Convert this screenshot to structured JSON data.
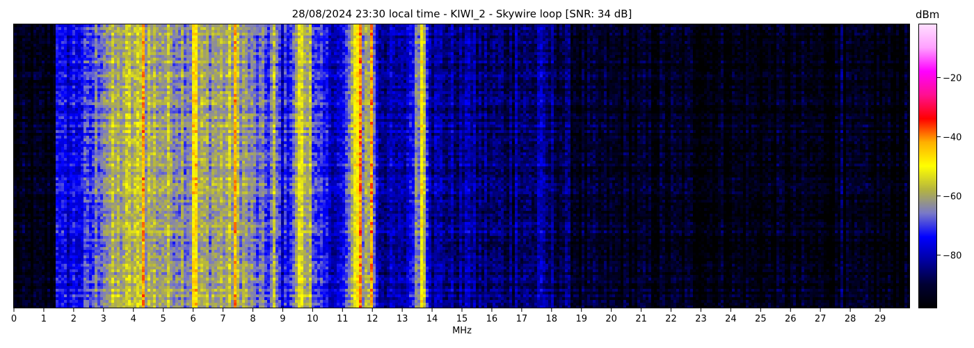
{
  "chart_data": {
    "type": "heatmap",
    "title": "28/08/2024 23:30 local time - KIWI_2 - Skywire loop [SNR: 34 dB]",
    "xlabel": "MHz",
    "ylabel": "",
    "xlim": [
      0,
      30
    ],
    "x_ticks": [
      0,
      1,
      2,
      3,
      4,
      5,
      6,
      7,
      8,
      9,
      10,
      11,
      12,
      13,
      14,
      15,
      16,
      17,
      18,
      19,
      20,
      21,
      22,
      23,
      24,
      25,
      26,
      27,
      28,
      29
    ],
    "colorbar": {
      "label": "dBm",
      "range": [
        -98,
        -2
      ],
      "ticks": [
        -20,
        -40,
        -60,
        -80
      ],
      "colormap": [
        "#000000",
        "#000033",
        "#0000a0",
        "#0000ff",
        "#7878c8",
        "#b4b440",
        "#ffff00",
        "#ffb000",
        "#ff0000",
        "#ff1090",
        "#ff00ff",
        "#ffa0ff",
        "#ffe0ff"
      ]
    },
    "spectrum_profile": {
      "description_points_mhz": [
        0,
        1.4,
        1.45,
        2.5,
        3,
        4,
        5,
        6,
        7,
        7.5,
        8,
        8.5,
        8.7,
        9,
        9.5,
        9.8,
        10,
        10.5,
        11,
        11.5,
        11.7,
        12,
        12.2,
        13,
        13.7,
        14,
        15,
        16,
        17,
        18,
        18.5,
        19,
        25,
        30
      ],
      "level_dbm": [
        -96,
        -95,
        -78,
        -72,
        -62,
        -58,
        -60,
        -62,
        -60,
        -58,
        -66,
        -70,
        -62,
        -76,
        -62,
        -58,
        -72,
        -76,
        -78,
        -50,
        -62,
        -58,
        -80,
        -84,
        -58,
        -82,
        -84,
        -86,
        -86,
        -86,
        -88,
        -93,
        -95,
        -96
      ]
    },
    "strong_lines_mhz": [
      {
        "f": 4.3,
        "level_dbm": -42
      },
      {
        "f": 6.05,
        "level_dbm": -46
      },
      {
        "f": 7.4,
        "level_dbm": -44
      },
      {
        "f": 9.6,
        "level_dbm": -54
      },
      {
        "f": 9.9,
        "level_dbm": -56
      },
      {
        "f": 11.6,
        "level_dbm": -40
      },
      {
        "f": 11.95,
        "level_dbm": -42
      },
      {
        "f": 13.68,
        "level_dbm": -50
      },
      {
        "f": 13.75,
        "level_dbm": -56
      },
      {
        "f": 8.7,
        "level_dbm": -58
      },
      {
        "f": 1.42,
        "level_dbm": -72
      },
      {
        "f": 15.2,
        "level_dbm": -78
      },
      {
        "f": 16.8,
        "level_dbm": -80
      },
      {
        "f": 17.6,
        "level_dbm": -80
      },
      {
        "f": 27.75,
        "level_dbm": -84
      }
    ]
  }
}
